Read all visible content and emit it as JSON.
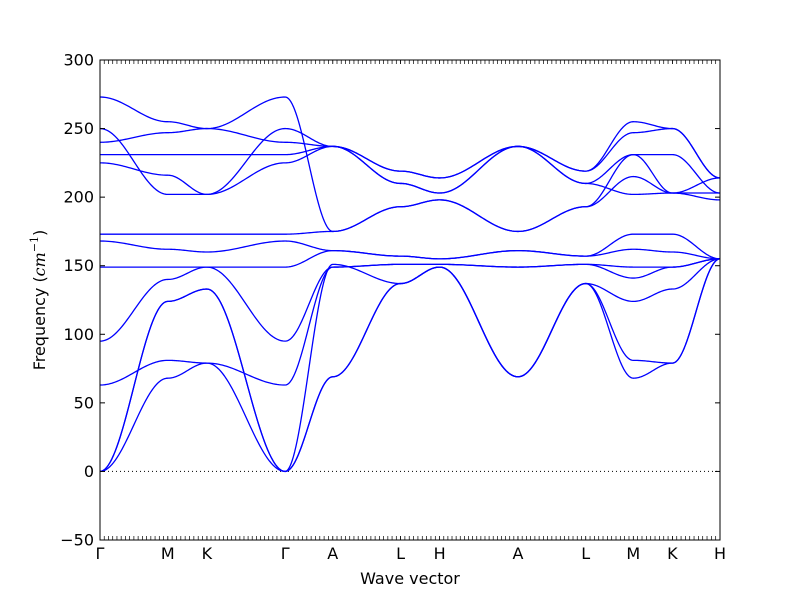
{
  "chart_data": {
    "type": "line",
    "title": "",
    "xlabel": "Wave vector",
    "ylabel_prefix": "Frequency (",
    "ylabel_math": "cm",
    "ylabel_exp": "−1",
    "ylabel_suffix": ")",
    "ylim": [
      -50,
      300
    ],
    "yticks": [
      -50,
      0,
      50,
      100,
      150,
      200,
      250,
      300
    ],
    "line_color": "#0000ff",
    "zero_line": {
      "y": 0,
      "style": "dotted",
      "color": "#000000"
    },
    "grid": false,
    "x_ticks": [
      {
        "label": "Γ",
        "x": 0.0
      },
      {
        "label": "M",
        "x": 1.0
      },
      {
        "label": "K",
        "x": 1.577
      },
      {
        "label": "Γ",
        "x": 2.732
      },
      {
        "label": "A",
        "x": 3.434
      },
      {
        "label": "L",
        "x": 4.434
      },
      {
        "label": "H",
        "x": 5.011
      },
      {
        "label": "A",
        "x": 6.166
      },
      {
        "label": "L",
        "x": 7.166
      },
      {
        "label": "M",
        "x": 7.868
      },
      {
        "label": "K",
        "x": 8.445
      },
      {
        "label": "H",
        "x": 9.147
      }
    ],
    "series": [
      {
        "x": [
          0.0,
          1.0,
          1.577,
          2.732,
          3.434,
          4.434,
          5.011,
          6.166,
          7.166,
          7.868,
          8.445,
          9.147
        ],
        "y": [
          0,
          68,
          79,
          0,
          69,
          137,
          149,
          69,
          137,
          68,
          79,
          155
        ]
      },
      {
        "x": [
          0.0,
          1.0,
          1.577,
          2.732,
          3.434,
          4.434,
          5.011,
          6.166,
          7.166,
          7.868,
          8.445,
          9.147
        ],
        "y": [
          0,
          124,
          133,
          0,
          69,
          137,
          149,
          69,
          137,
          124,
          133,
          155
        ]
      },
      {
        "x": [
          0.0,
          1.0,
          1.577,
          2.732,
          3.434,
          4.434,
          5.011,
          6.166,
          7.166,
          7.868,
          8.445,
          9.147
        ],
        "y": [
          0,
          124,
          133,
          0,
          151,
          137,
          149,
          69,
          137,
          81,
          79,
          155
        ]
      },
      {
        "x": [
          0.0,
          1.0,
          1.577,
          2.732,
          3.434,
          4.434,
          5.011,
          6.166,
          7.166,
          7.868,
          8.445,
          9.147
        ],
        "y": [
          63,
          81,
          79,
          63,
          149,
          151,
          151,
          149,
          151,
          141,
          149,
          155
        ]
      },
      {
        "x": [
          0.0,
          1.0,
          1.577,
          2.732,
          3.434,
          4.434,
          5.011,
          6.166,
          7.166,
          7.868,
          8.445,
          9.147
        ],
        "y": [
          95,
          140,
          149,
          95,
          149,
          151,
          151,
          149,
          151,
          149,
          149,
          155
        ]
      },
      {
        "x": [
          0.0,
          1.0,
          1.577,
          2.732,
          3.434,
          4.434,
          5.011,
          6.166,
          7.166,
          7.868,
          8.445,
          9.147
        ],
        "y": [
          149,
          149,
          149,
          149,
          161,
          157,
          155,
          161,
          157,
          173,
          173,
          155
        ]
      },
      {
        "x": [
          0.0,
          1.0,
          1.577,
          2.732,
          3.434,
          4.434,
          5.011,
          6.166,
          7.166,
          7.868,
          8.445,
          9.147
        ],
        "y": [
          168,
          162,
          160,
          168,
          161,
          157,
          155,
          161,
          157,
          162,
          160,
          155
        ]
      },
      {
        "x": [
          0.0,
          1.0,
          1.577,
          2.732,
          3.434,
          4.434,
          5.011,
          6.166,
          7.166,
          7.868,
          8.445,
          9.147
        ],
        "y": [
          173,
          173,
          173,
          173,
          175,
          193,
          198,
          175,
          193,
          215,
          203,
          198
        ]
      },
      {
        "x": [
          0.0,
          1.0,
          1.577,
          2.732,
          3.434,
          4.434,
          5.011,
          6.166,
          7.166,
          7.868,
          8.445,
          9.147
        ],
        "y": [
          225,
          216,
          202,
          225,
          237,
          210,
          203,
          237,
          210,
          202,
          203,
          203
        ]
      },
      {
        "x": [
          0.0,
          1.0,
          1.577,
          2.732,
          3.434,
          4.434,
          5.011,
          6.166,
          7.166,
          7.868,
          8.445,
          9.147
        ],
        "y": [
          231,
          231,
          231,
          231,
          237,
          210,
          203,
          237,
          210,
          231,
          231,
          203
        ]
      },
      {
        "x": [
          0.0,
          1.0,
          1.577,
          2.732,
          3.434,
          4.434,
          5.011,
          6.166,
          7.166,
          7.868,
          8.445,
          9.147
        ],
        "y": [
          240,
          247,
          250,
          240,
          237,
          219,
          214,
          237,
          219,
          247,
          250,
          214
        ]
      },
      {
        "x": [
          0.0,
          1.0,
          1.577,
          2.732,
          3.434,
          4.434,
          5.011,
          6.166,
          7.166,
          7.868,
          8.445,
          9.147
        ],
        "y": [
          250,
          202,
          202,
          250,
          237,
          219,
          214,
          237,
          219,
          255,
          250,
          214
        ]
      },
      {
        "x": [
          0.0,
          1.0,
          1.577,
          2.732,
          3.434,
          4.434,
          5.011,
          6.166,
          7.166,
          7.868,
          8.445,
          9.147
        ],
        "y": [
          273,
          255,
          250,
          273,
          175,
          193,
          198,
          175,
          193,
          231,
          203,
          214
        ]
      }
    ]
  }
}
